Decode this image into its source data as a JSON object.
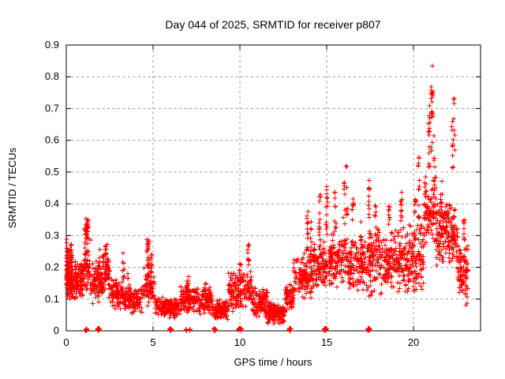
{
  "chart_data": {
    "type": "scatter",
    "title": "Day 044 of 2025, SRMTID for receiver p807",
    "xlabel": "GPS time / hours",
    "ylabel": "SRMTID / TECUs",
    "xlim": [
      0,
      23.86
    ],
    "ylim": [
      0,
      0.9
    ],
    "xticks": [
      [
        0,
        "0"
      ],
      [
        5,
        "5"
      ],
      [
        10,
        "10"
      ],
      [
        15,
        "15"
      ],
      [
        20,
        "20"
      ]
    ],
    "yticks": [
      [
        0,
        "0"
      ],
      [
        0.1,
        "0.1"
      ],
      [
        0.2,
        "0.2"
      ],
      [
        0.3,
        "0.3"
      ],
      [
        0.4,
        "0.4"
      ],
      [
        0.5,
        "0.5"
      ],
      [
        0.6,
        "0.6"
      ],
      [
        0.7,
        "0.7"
      ],
      [
        0.8,
        "0.8"
      ],
      [
        0.9,
        "0.9"
      ]
    ],
    "grid": true,
    "legend": "none",
    "marker": "plus",
    "marker_color": "#ff0000",
    "axis_color": "#000000",
    "grid_color": "#9a9a9a",
    "background": "#ffffff",
    "point_model": {
      "comment": "density model of the ~3000-point cloud: segments=[t0,t1,yLow,yHigh,count] bulk bands; spikes=[t,y0,y1,count,width] vertical strings; zero_clusters=[t,count,width] dense points at y=0 shown as filled squares on the axis",
      "seed": 20250044,
      "segments": [
        [
          0.0,
          0.35,
          0.1,
          0.29,
          70
        ],
        [
          0.0,
          1.0,
          0.09,
          0.23,
          170
        ],
        [
          1.0,
          1.45,
          0.1,
          0.3,
          50
        ],
        [
          1.45,
          2.1,
          0.08,
          0.22,
          90
        ],
        [
          2.1,
          2.55,
          0.08,
          0.26,
          60
        ],
        [
          2.55,
          3.3,
          0.06,
          0.17,
          90
        ],
        [
          3.3,
          4.4,
          0.05,
          0.14,
          120
        ],
        [
          4.4,
          5.1,
          0.07,
          0.2,
          70
        ],
        [
          5.1,
          6.6,
          0.035,
          0.11,
          160
        ],
        [
          6.6,
          7.4,
          0.05,
          0.15,
          100
        ],
        [
          7.4,
          8.4,
          0.05,
          0.14,
          110
        ],
        [
          8.4,
          9.3,
          0.03,
          0.1,
          110
        ],
        [
          9.3,
          10.25,
          0.06,
          0.19,
          110
        ],
        [
          10.25,
          10.7,
          0.07,
          0.2,
          40
        ],
        [
          10.7,
          11.6,
          0.04,
          0.14,
          110
        ],
        [
          11.6,
          12.6,
          0.02,
          0.09,
          150
        ],
        [
          12.6,
          13.1,
          0.05,
          0.16,
          60
        ],
        [
          13.1,
          14.2,
          0.1,
          0.25,
          130
        ],
        [
          14.2,
          15.1,
          0.12,
          0.3,
          100
        ],
        [
          15.1,
          16.2,
          0.13,
          0.32,
          120
        ],
        [
          16.2,
          17.2,
          0.12,
          0.3,
          120
        ],
        [
          17.2,
          18.2,
          0.1,
          0.33,
          120
        ],
        [
          18.2,
          19.1,
          0.12,
          0.33,
          110
        ],
        [
          19.1,
          19.7,
          0.1,
          0.33,
          80
        ],
        [
          19.7,
          20.6,
          0.1,
          0.36,
          110
        ],
        [
          20.6,
          21.3,
          0.25,
          0.5,
          90
        ],
        [
          21.3,
          22.0,
          0.2,
          0.42,
          100
        ],
        [
          22.0,
          22.55,
          0.18,
          0.42,
          80
        ],
        [
          22.55,
          23.15,
          0.08,
          0.3,
          90
        ]
      ],
      "spikes": [
        [
          0.05,
          0.17,
          0.29,
          12,
          0.08
        ],
        [
          0.3,
          0.2,
          0.28,
          10,
          0.1
        ],
        [
          1.1,
          0.24,
          0.33,
          10,
          0.1
        ],
        [
          1.2,
          0.29,
          0.355,
          22,
          0.15
        ],
        [
          1.9,
          0.18,
          0.26,
          8,
          0.1
        ],
        [
          2.3,
          0.2,
          0.285,
          14,
          0.12
        ],
        [
          3.3,
          0.15,
          0.25,
          10,
          0.1
        ],
        [
          3.6,
          0.12,
          0.19,
          8,
          0.1
        ],
        [
          4.7,
          0.17,
          0.29,
          20,
          0.15
        ],
        [
          4.9,
          0.15,
          0.25,
          10,
          0.1
        ],
        [
          7.0,
          0.12,
          0.17,
          8,
          0.12
        ],
        [
          8.0,
          0.11,
          0.16,
          6,
          0.1
        ],
        [
          10.0,
          0.15,
          0.22,
          10,
          0.12
        ],
        [
          10.5,
          0.2,
          0.3,
          10,
          0.1
        ],
        [
          13.9,
          0.25,
          0.4,
          14,
          0.12
        ],
        [
          14.1,
          0.22,
          0.35,
          10,
          0.1
        ],
        [
          14.6,
          0.3,
          0.43,
          12,
          0.1
        ],
        [
          15.0,
          0.3,
          0.47,
          14,
          0.12
        ],
        [
          15.5,
          0.3,
          0.44,
          10,
          0.1
        ],
        [
          16.0,
          0.32,
          0.47,
          8,
          0.1
        ],
        [
          16.15,
          0.35,
          0.53,
          10,
          0.08
        ],
        [
          16.5,
          0.28,
          0.42,
          8,
          0.1
        ],
        [
          17.0,
          0.25,
          0.35,
          6,
          0.1
        ],
        [
          17.45,
          0.3,
          0.5,
          12,
          0.1
        ],
        [
          17.8,
          0.28,
          0.4,
          8,
          0.1
        ],
        [
          18.6,
          0.3,
          0.4,
          8,
          0.1
        ],
        [
          19.3,
          0.3,
          0.48,
          12,
          0.1
        ],
        [
          20.1,
          0.3,
          0.42,
          8,
          0.1
        ],
        [
          20.3,
          0.35,
          0.55,
          14,
          0.1
        ],
        [
          20.9,
          0.5,
          0.72,
          16,
          0.1
        ],
        [
          21.05,
          0.55,
          0.785,
          14,
          0.08
        ],
        [
          21.1,
          0.62,
          0.84,
          8,
          0.06
        ],
        [
          21.2,
          0.45,
          0.62,
          8,
          0.08
        ],
        [
          21.6,
          0.38,
          0.48,
          8,
          0.1
        ],
        [
          22.25,
          0.5,
          0.66,
          10,
          0.1
        ],
        [
          22.35,
          0.55,
          0.735,
          8,
          0.08
        ],
        [
          22.9,
          0.28,
          0.35,
          10,
          0.1
        ]
      ],
      "zero_clusters": [
        [
          1.15,
          12,
          0.12
        ],
        [
          1.85,
          12,
          0.12
        ],
        [
          6.0,
          12,
          0.12
        ],
        [
          6.92,
          5,
          0.04
        ],
        [
          7.12,
          5,
          0.04
        ],
        [
          8.55,
          12,
          0.12
        ],
        [
          9.95,
          5,
          0.04
        ],
        [
          10.08,
          5,
          0.04
        ],
        [
          12.9,
          12,
          0.12
        ],
        [
          14.92,
          14,
          0.14
        ],
        [
          17.42,
          14,
          0.14
        ]
      ]
    }
  }
}
